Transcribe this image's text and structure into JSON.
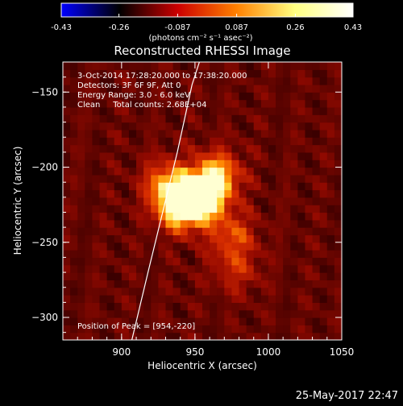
{
  "chart_data": {
    "type": "heatmap",
    "title": "Reconstructed RHESSI Image",
    "xlabel": "Heliocentric X (arcsec)",
    "ylabel": "Heliocentric Y (arcsec)",
    "xlim": [
      860,
      1050
    ],
    "ylim": [
      -315,
      -130
    ],
    "xticks": [
      900,
      950,
      1000,
      1050
    ],
    "yticks": [
      -150,
      -200,
      -250,
      -300
    ],
    "colorbar": {
      "min": -0.43,
      "max": 0.43,
      "ticks": [
        -0.43,
        -0.26,
        -0.087,
        0.087,
        0.26,
        0.43
      ],
      "tick_labels": [
        "-0.43",
        "-0.26",
        "-0.087",
        "0.087",
        "0.26",
        "0.43"
      ],
      "label": "(photons cm⁻² s⁻¹ asec⁻²)",
      "colormap": [
        "#0000ff",
        "#000000",
        "#cc0000",
        "#ff8000",
        "#ffff80",
        "#ffffff"
      ]
    },
    "annotations": [
      "3-Oct-2014 17:28:20.000 to 17:38:20.000",
      "Detectors: 3F 6F 9F, Att 0",
      "Energy Range: 3.0 - 6.0 keV",
      "Clean     Total counts: 2.68E+04"
    ],
    "peak_label": "Position of Peak = [954,-220]",
    "peak": [
      954,
      -220
    ],
    "source_points": [
      [
        940,
        -225,
        0.43
      ],
      [
        955,
        -220,
        0.4
      ],
      [
        965,
        -205,
        0.3
      ],
      [
        930,
        -210,
        0.22
      ],
      [
        975,
        -245,
        0.18
      ],
      [
        978,
        -268,
        0.12
      ]
    ],
    "limb_curve": [
      [
        907,
        -315
      ],
      [
        918,
        -270
      ],
      [
        928,
        -230
      ],
      [
        938,
        -190
      ],
      [
        948,
        -145
      ],
      [
        953,
        -130
      ]
    ],
    "grid": false
  },
  "footer": {
    "date": "25-May-2017 22:47"
  }
}
